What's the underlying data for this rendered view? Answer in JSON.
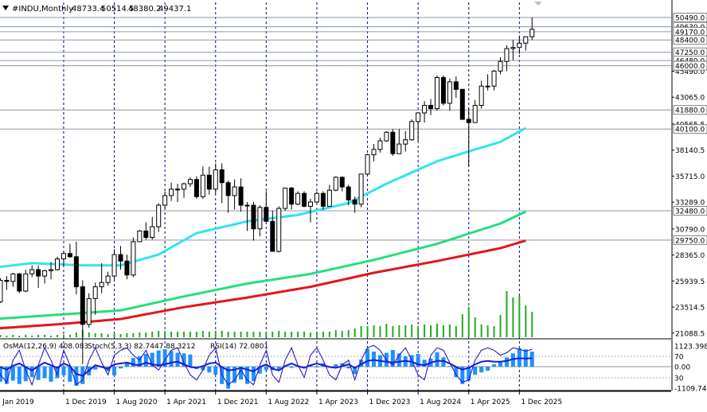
{
  "header": {
    "menu_icon": "triangle-down-icon",
    "symbol": "#INDU,Monthly",
    "open": "48733.4",
    "high": "50514.5",
    "low": "48380.2",
    "close": "49437.1"
  },
  "indicator_header": {
    "osma": "OsMA(12,26,9) 408.083",
    "stoch": "Stoch(5,3,3) 82.7447 88.3212",
    "rsi": "RSI(14) 72.0801"
  },
  "colors": {
    "candle_up": "#ffffff",
    "candle_down": "#000000",
    "ma_short": "#33e3ef",
    "ma_mid": "#22e07a",
    "ma_long": "#e3161c",
    "volume": "#22aa22",
    "osma_hist": "#1e90ff",
    "stoch_main": "#1a1ad6",
    "stoch_signal": "#e3161c",
    "rsi": "#1a1ad6",
    "level_line": "#8c97a8",
    "grid": "#000080"
  },
  "chart_data": {
    "type": "candlestick",
    "title": "#INDU,Monthly",
    "price_axis_labels": [
      "23514.5",
      "25939.5",
      "28365.0",
      "30790.0",
      "33289.0",
      "35715.0",
      "38140.5",
      "40565.5",
      "43065.0",
      "45490.0",
      "21088.5"
    ],
    "highlighted_levels": [
      {
        "label": "50490.0",
        "value": 50490
      },
      {
        "label": "49630.0",
        "value": 49630
      },
      {
        "label": "49170.0",
        "value": 49170
      },
      {
        "label": "48400.0",
        "value": 48400
      },
      {
        "label": "47250.0",
        "value": 47250
      },
      {
        "label": "46480.0",
        "value": 46480
      },
      {
        "label": "46000.0",
        "value": 46000
      },
      {
        "label": "41880.0",
        "value": 41880
      },
      {
        "label": "40100.0",
        "value": 40100
      },
      {
        "label": "32480.0",
        "value": 32480
      },
      {
        "label": "29750.0",
        "value": 29750
      }
    ],
    "ylim": [
      20700,
      51900
    ],
    "x_labels": [
      "1 Jan 2019",
      "1 Dec 2019",
      "1 Aug 2020",
      "1 Apr 2021",
      "1 Dec 2021",
      "1 Aug 2022",
      "1 Apr 2023",
      "1 Dec 2023",
      "1 Aug 2024",
      "1 Apr 2025",
      "1 Dec 2025"
    ],
    "x_label_months": [
      0,
      11,
      19,
      27,
      35,
      43,
      51,
      59,
      67,
      75,
      83
    ],
    "ohlc": [
      [
        23400,
        24500,
        23100,
        24000
      ],
      [
        24000,
        26200,
        23900,
        26000
      ],
      [
        26000,
        26400,
        25100,
        25900
      ],
      [
        25900,
        26700,
        25400,
        26600
      ],
      [
        26600,
        26700,
        24800,
        25000
      ],
      [
        25000,
        27000,
        24900,
        26600
      ],
      [
        26600,
        27400,
        26300,
        27000
      ],
      [
        27000,
        27400,
        25300,
        26400
      ],
      [
        26400,
        27000,
        25700,
        26900
      ],
      [
        26900,
        27700,
        26100,
        27000
      ],
      [
        27000,
        28200,
        26900,
        28000
      ],
      [
        28000,
        28700,
        27300,
        28500
      ],
      [
        28500,
        29400,
        28100,
        28200
      ],
      [
        28200,
        29600,
        24700,
        25400
      ],
      [
        25400,
        26000,
        18200,
        21900
      ],
      [
        21900,
        24800,
        21600,
        24300
      ],
      [
        24300,
        25800,
        22800,
        25400
      ],
      [
        25400,
        27600,
        24800,
        25800
      ],
      [
        25800,
        26800,
        25500,
        26400
      ],
      [
        26400,
        28900,
        26100,
        28400
      ],
      [
        28400,
        29200,
        27000,
        27800
      ],
      [
        27800,
        28400,
        26100,
        26500
      ],
      [
        26500,
        30000,
        26300,
        29600
      ],
      [
        29600,
        30700,
        29600,
        30600
      ],
      [
        30600,
        31400,
        29800,
        30000
      ],
      [
        30000,
        31900,
        29800,
        31000
      ],
      [
        31000,
        33200,
        30500,
        33000
      ],
      [
        33000,
        34300,
        32700,
        33900
      ],
      [
        33900,
        35100,
        33400,
        34500
      ],
      [
        34500,
        35000,
        33300,
        34500
      ],
      [
        34500,
        35100,
        33700,
        35000
      ],
      [
        35000,
        35600,
        34700,
        35400
      ],
      [
        35400,
        35700,
        33600,
        33800
      ],
      [
        33800,
        36600,
        33600,
        35800
      ],
      [
        35800,
        36600,
        34000,
        34500
      ],
      [
        34500,
        36900,
        34100,
        36300
      ],
      [
        36300,
        36900,
        33200,
        35100
      ],
      [
        35100,
        35300,
        32300,
        33900
      ],
      [
        33900,
        35400,
        32600,
        34700
      ],
      [
        34700,
        35500,
        32400,
        33000
      ],
      [
        33000,
        33300,
        30600,
        33000
      ],
      [
        33000,
        33300,
        29700,
        30800
      ],
      [
        30800,
        33000,
        30100,
        32800
      ],
      [
        32800,
        34300,
        31500,
        31500
      ],
      [
        31500,
        32500,
        28700,
        28700
      ],
      [
        28700,
        32900,
        28600,
        32700
      ],
      [
        32700,
        34600,
        32500,
        34600
      ],
      [
        34600,
        34700,
        32600,
        33100
      ],
      [
        33100,
        34300,
        33000,
        34100
      ],
      [
        34100,
        34300,
        32800,
        32900
      ],
      [
        32900,
        33600,
        31400,
        33300
      ],
      [
        33300,
        34300,
        33200,
        34100
      ],
      [
        34100,
        34300,
        32600,
        32900
      ],
      [
        32900,
        34900,
        32900,
        34400
      ],
      [
        34400,
        35700,
        34300,
        35600
      ],
      [
        35600,
        35700,
        34300,
        34700
      ],
      [
        34700,
        34900,
        33000,
        33500
      ],
      [
        33500,
        33800,
        32300,
        33100
      ],
      [
        33100,
        35900,
        32800,
        35900
      ],
      [
        35900,
        37800,
        35900,
        37700
      ],
      [
        37700,
        38700,
        37100,
        38200
      ],
      [
        38200,
        39300,
        37900,
        39000
      ],
      [
        39000,
        39900,
        38900,
        39800
      ],
      [
        39800,
        40100,
        37600,
        37800
      ],
      [
        37800,
        40100,
        37800,
        38700
      ],
      [
        38700,
        39900,
        38000,
        39100
      ],
      [
        39100,
        41000,
        39000,
        40800
      ],
      [
        40800,
        41600,
        39000,
        41600
      ],
      [
        41600,
        42700,
        40700,
        42300
      ],
      [
        42300,
        42900,
        41400,
        42000
      ],
      [
        42000,
        45100,
        41800,
        44900
      ],
      [
        44900,
        45100,
        42300,
        42500
      ],
      [
        42500,
        44800,
        41800,
        44500
      ],
      [
        44500,
        45000,
        43000,
        43800
      ],
      [
        43800,
        43800,
        41000,
        41000
      ],
      [
        41000,
        42100,
        36600,
        40700
      ],
      [
        40700,
        42800,
        40700,
        42300
      ],
      [
        42300,
        44600,
        42000,
        44100
      ],
      [
        44100,
        45200,
        43700,
        44100
      ],
      [
        44100,
        45600,
        43700,
        45500
      ],
      [
        45500,
        46800,
        45200,
        46400
      ],
      [
        46400,
        47900,
        45500,
        47600
      ],
      [
        47600,
        48400,
        46500,
        47700
      ],
      [
        47700,
        48800,
        47100,
        48100
      ],
      [
        48100,
        48700,
        47400,
        48700
      ],
      [
        48700,
        50500,
        48400,
        49400
      ]
    ],
    "series": [
      {
        "name": "MA1",
        "ma_level_fill": "short",
        "values": [
          [
            0,
            27200
          ],
          [
            6,
            27600
          ],
          [
            14,
            27400
          ],
          [
            20,
            27400
          ],
          [
            26,
            28400
          ],
          [
            32,
            30400
          ],
          [
            40,
            31500
          ],
          [
            48,
            32100
          ],
          [
            56,
            33200
          ],
          [
            62,
            35000
          ],
          [
            70,
            37100
          ],
          [
            76,
            38200
          ],
          [
            80,
            38900
          ],
          [
            84,
            40200
          ]
        ]
      },
      {
        "name": "MA2",
        "values": [
          [
            0,
            22400
          ],
          [
            10,
            22800
          ],
          [
            20,
            23200
          ],
          [
            30,
            24500
          ],
          [
            40,
            25700
          ],
          [
            50,
            26600
          ],
          [
            60,
            27900
          ],
          [
            70,
            29400
          ],
          [
            80,
            31300
          ],
          [
            84,
            32400
          ]
        ]
      },
      {
        "name": "MA3",
        "values": [
          [
            0,
            21500
          ],
          [
            10,
            21900
          ],
          [
            20,
            22400
          ],
          [
            30,
            23500
          ],
          [
            40,
            24400
          ],
          [
            50,
            25400
          ],
          [
            60,
            26700
          ],
          [
            70,
            27800
          ],
          [
            80,
            29000
          ],
          [
            84,
            29700
          ]
        ]
      }
    ],
    "volume_heights": [
      2,
      3,
      2,
      3,
      2,
      3,
      2,
      3,
      3,
      2,
      3,
      3,
      3,
      6,
      9,
      6,
      5,
      5,
      4,
      5,
      4,
      5,
      5,
      6,
      6,
      7,
      8,
      8,
      7,
      7,
      7,
      7,
      7,
      8,
      7,
      8,
      8,
      7,
      7,
      7,
      7,
      7,
      7,
      7,
      7,
      8,
      7,
      7,
      7,
      7,
      6,
      7,
      7,
      7,
      9,
      8,
      9,
      11,
      14,
      14,
      15,
      14,
      17,
      14,
      15,
      15,
      16,
      14,
      16,
      15,
      17,
      15,
      16,
      14,
      29,
      38,
      25,
      16,
      15,
      14,
      28,
      58,
      50,
      52,
      40,
      32
    ],
    "indicator_axis_labels": [
      "1123.398",
      "70",
      "30",
      "0.00",
      "-1109.741"
    ],
    "osma": [
      -200,
      -260,
      -300,
      -240,
      -300,
      -250,
      -180,
      -230,
      -200,
      -260,
      -200,
      -150,
      -260,
      -330,
      -300,
      -150,
      -50,
      10,
      -80,
      -150,
      -30,
      80,
      150,
      180,
      220,
      240,
      280,
      300,
      270,
      240,
      230,
      210,
      -40,
      -60,
      -100,
      -140,
      -300,
      -380,
      -280,
      -220,
      -300,
      -250,
      -120,
      -60,
      -60,
      -50,
      10,
      -20,
      20,
      -10,
      30,
      -10,
      60,
      -10,
      40,
      60,
      -30,
      -130,
      120,
      310,
      260,
      200,
      240,
      290,
      230,
      180,
      200,
      220,
      120,
      140,
      250,
      160,
      10,
      -180,
      -300,
      -240,
      -140,
      -100,
      -70,
      40,
      80,
      160,
      230,
      320,
      300,
      260
    ],
    "stoch": [
      70,
      30,
      15,
      60,
      80,
      40,
      10,
      50,
      85,
      60,
      30,
      80,
      50,
      10,
      20,
      60,
      85,
      55,
      30,
      70,
      80,
      85,
      70,
      60,
      80,
      50,
      40,
      60,
      80,
      85,
      55,
      30,
      20,
      40,
      70,
      85,
      30,
      10,
      20,
      40,
      20,
      10,
      50,
      80,
      30,
      15,
      60,
      85,
      50,
      25,
      70,
      85,
      60,
      30,
      20,
      50,
      60,
      20,
      60,
      85,
      90,
      80,
      60,
      50,
      70,
      85,
      60,
      30,
      20,
      70,
      85,
      80,
      55,
      30,
      15,
      20,
      60,
      80,
      85,
      80,
      70,
      75,
      85,
      82,
      78,
      82
    ],
    "rsi": [
      58,
      52,
      46,
      55,
      60,
      52,
      44,
      54,
      62,
      56,
      50,
      60,
      54,
      36,
      32,
      44,
      56,
      52,
      48,
      58,
      60,
      62,
      58,
      56,
      62,
      58,
      56,
      58,
      62,
      64,
      58,
      52,
      50,
      54,
      60,
      62,
      52,
      44,
      46,
      50,
      46,
      42,
      52,
      58,
      48,
      44,
      54,
      60,
      54,
      50,
      56,
      60,
      56,
      52,
      50,
      54,
      58,
      50,
      58,
      66,
      68,
      66,
      64,
      62,
      64,
      66,
      64,
      58,
      56,
      62,
      66,
      66,
      60,
      52,
      46,
      50,
      58,
      64,
      66,
      64,
      64,
      66,
      70,
      72,
      71,
      72
    ]
  }
}
